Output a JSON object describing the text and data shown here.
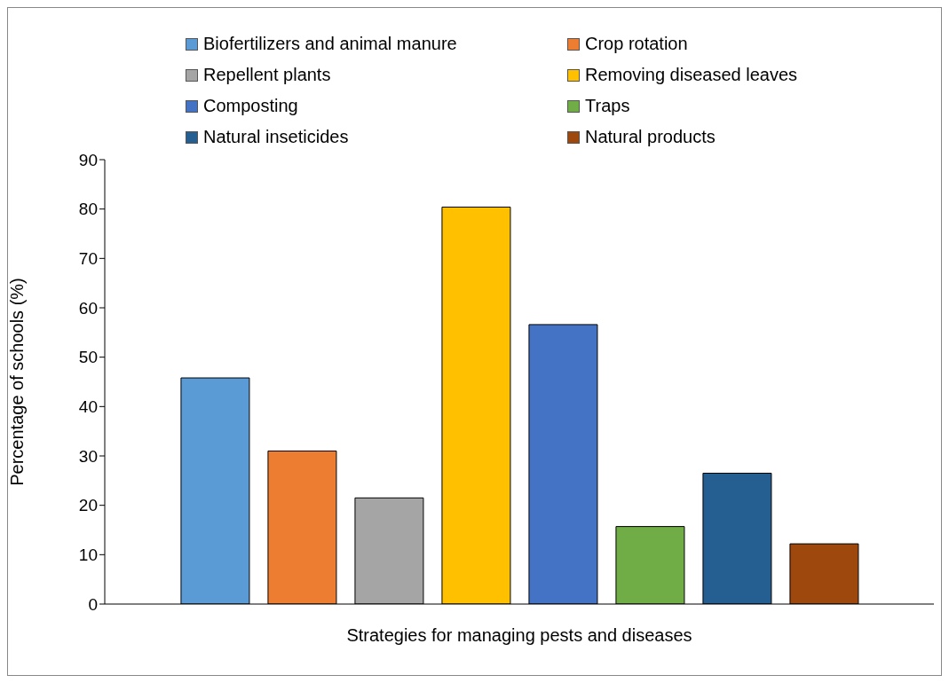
{
  "chart_data": {
    "type": "bar",
    "xlabel": "Strategies for managing pests and diseases",
    "ylabel": "Percentage of schools (%)",
    "categories": [
      null
    ],
    "series": [
      {
        "name": "Biofertilizers and animal manure",
        "color": "#5b9bd5",
        "values": [
          45.8
        ]
      },
      {
        "name": "Crop rotation",
        "color": "#ed7d31",
        "values": [
          31
        ]
      },
      {
        "name": "Repellent plants",
        "color": "#a5a5a5",
        "values": [
          21.5
        ]
      },
      {
        "name": "Removing diseased leaves",
        "color": "#ffc000",
        "values": [
          80.4
        ]
      },
      {
        "name": "Composting",
        "color": "#4472c4",
        "values": [
          56.6
        ]
      },
      {
        "name": "Traps",
        "color": "#70ad47",
        "values": [
          15.7
        ]
      },
      {
        "name": "Natural inseticides",
        "color": "#255e91",
        "values": [
          26.5
        ]
      },
      {
        "name": "Natural products",
        "color": "#9e480e",
        "values": [
          12.2
        ]
      }
    ],
    "ylim": [
      0,
      90
    ],
    "yticks": [
      0,
      10,
      20,
      30,
      40,
      50,
      60,
      70,
      80,
      90
    ],
    "grid": false,
    "legend": "top"
  }
}
